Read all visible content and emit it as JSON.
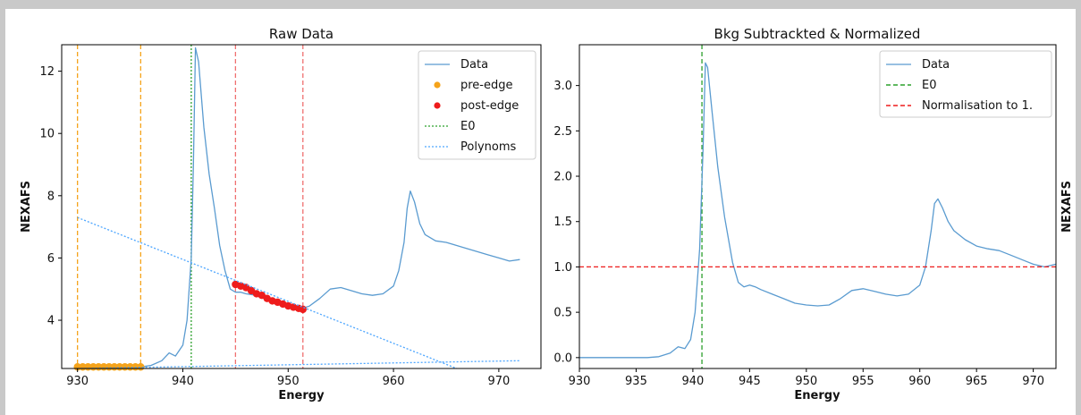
{
  "chart_data": [
    {
      "type": "line",
      "title": "Raw Data",
      "xlabel": "Energy",
      "ylabel": "NEXAFS",
      "xlim": [
        928.5,
        974
      ],
      "ylim": [
        2.45,
        12.85
      ],
      "xticks": [
        930,
        940,
        950,
        960,
        970
      ],
      "yticks": [
        4,
        6,
        8,
        10,
        12
      ],
      "legend_position": "top-right",
      "legend": [
        "Data",
        "pre-edge",
        "post-edge",
        "E0",
        "Polynoms"
      ],
      "series": [
        {
          "name": "Data",
          "color": "#5a9bd0",
          "style": "line",
          "x": [
            930,
            932,
            934,
            936,
            937,
            938,
            938.7,
            939.3,
            940,
            940.4,
            940.8,
            941.0,
            941.2,
            941.5,
            942,
            942.5,
            943,
            943.5,
            944,
            944.5,
            945,
            945.5,
            946,
            947,
            948,
            949,
            950,
            951,
            951.5,
            952,
            953,
            954,
            955,
            956,
            957,
            958,
            959,
            960,
            960.5,
            961,
            961.3,
            961.6,
            962,
            962.5,
            963,
            964,
            965,
            966,
            967,
            968,
            969,
            970,
            971,
            972
          ],
          "y": [
            2.5,
            2.5,
            2.5,
            2.5,
            2.55,
            2.7,
            2.95,
            2.85,
            3.2,
            4.0,
            6.0,
            9.0,
            12.75,
            12.3,
            10.2,
            8.7,
            7.6,
            6.4,
            5.6,
            5.0,
            4.9,
            4.9,
            4.85,
            4.8,
            4.65,
            4.55,
            4.5,
            4.45,
            4.4,
            4.45,
            4.7,
            5.0,
            5.05,
            4.95,
            4.85,
            4.8,
            4.85,
            5.1,
            5.6,
            6.5,
            7.6,
            8.15,
            7.8,
            7.1,
            6.75,
            6.55,
            6.5,
            6.4,
            6.3,
            6.2,
            6.1,
            6.0,
            5.9,
            5.95
          ]
        },
        {
          "name": "pre-edge",
          "color": "#f5a31a",
          "style": "points",
          "x": [
            930,
            930.5,
            931,
            931.5,
            932,
            932.5,
            933,
            933.5,
            934,
            934.5,
            935,
            935.5,
            936
          ],
          "y": [
            2.5,
            2.5,
            2.5,
            2.5,
            2.5,
            2.5,
            2.5,
            2.5,
            2.5,
            2.5,
            2.5,
            2.5,
            2.5
          ]
        },
        {
          "name": "post-edge",
          "color": "#ee1c1c",
          "style": "points",
          "x": [
            945,
            945.5,
            946,
            946.5,
            947,
            947.5,
            948,
            948.5,
            949,
            949.5,
            950,
            950.5,
            951,
            951.4
          ],
          "y": [
            5.15,
            5.1,
            5.05,
            4.95,
            4.85,
            4.8,
            4.7,
            4.62,
            4.58,
            4.52,
            4.46,
            4.42,
            4.38,
            4.35
          ]
        },
        {
          "name": "Polynoms",
          "color": "#4da6ff",
          "style": "dotted",
          "x": [
            930,
            966
          ],
          "y": [
            7.3,
            2.45
          ]
        },
        {
          "name": "Polynoms",
          "color": "#4da6ff",
          "style": "dotted",
          "x": [
            930,
            972
          ],
          "y": [
            2.45,
            2.7
          ]
        }
      ],
      "vlines": [
        {
          "name": "pre-edge",
          "x": 930,
          "color": "#f5a31a"
        },
        {
          "name": "pre-edge",
          "x": 936,
          "color": "#f5a31a"
        },
        {
          "name": "E0",
          "x": 940.8,
          "color": "#2ca02c"
        },
        {
          "name": "post-edge",
          "x": 945,
          "color": "#f07070"
        },
        {
          "name": "post-edge",
          "x": 951.4,
          "color": "#f07070"
        }
      ]
    },
    {
      "type": "line",
      "title": "Bkg Subtrackted & Normalized",
      "xlabel": "Energy",
      "ylabel": "NEXAFS",
      "xlim": [
        930,
        972
      ],
      "ylim": [
        -0.12,
        3.45
      ],
      "xticks": [
        930,
        935,
        940,
        945,
        950,
        955,
        960,
        965,
        970
      ],
      "yticks": [
        0.0,
        0.5,
        1.0,
        1.5,
        2.0,
        2.5,
        3.0
      ],
      "ytick_labels": [
        "0.0",
        "0.5",
        "1.0",
        "1.5",
        "2.0",
        "2.5",
        "3.0"
      ],
      "legend_position": "top-right",
      "legend": [
        "Data",
        "E0",
        "Normalisation to 1."
      ],
      "series": [
        {
          "name": "Data",
          "color": "#5a9bd0",
          "style": "line",
          "x": [
            930,
            932,
            934,
            936,
            937,
            938,
            938.7,
            939.3,
            939.8,
            940.2,
            940.6,
            940.9,
            941.1,
            941.3,
            941.7,
            942.2,
            942.8,
            943.5,
            944,
            944.5,
            945,
            945.5,
            946,
            947,
            948,
            949,
            950,
            951,
            952,
            953,
            954,
            955,
            956,
            957,
            958,
            959,
            960,
            960.5,
            961,
            961.3,
            961.6,
            962,
            962.5,
            963,
            964,
            965,
            966,
            967,
            968,
            969,
            970,
            971,
            972
          ],
          "y": [
            0.0,
            0.0,
            0.0,
            0.0,
            0.01,
            0.05,
            0.12,
            0.1,
            0.2,
            0.5,
            1.2,
            2.3,
            3.25,
            3.2,
            2.7,
            2.1,
            1.55,
            1.05,
            0.83,
            0.78,
            0.8,
            0.78,
            0.75,
            0.7,
            0.65,
            0.6,
            0.58,
            0.57,
            0.58,
            0.65,
            0.74,
            0.76,
            0.73,
            0.7,
            0.68,
            0.7,
            0.8,
            1.0,
            1.4,
            1.7,
            1.75,
            1.65,
            1.5,
            1.4,
            1.3,
            1.23,
            1.2,
            1.18,
            1.13,
            1.08,
            1.03,
            1.0,
            1.03
          ]
        },
        {
          "name": "Normalisation to 1.",
          "color": "#ee1c1c",
          "style": "dashed",
          "x": [
            930,
            972
          ],
          "y": [
            1.0,
            1.0
          ]
        }
      ],
      "vlines": [
        {
          "name": "E0",
          "x": 940.8,
          "color": "#2ca02c"
        }
      ]
    }
  ]
}
